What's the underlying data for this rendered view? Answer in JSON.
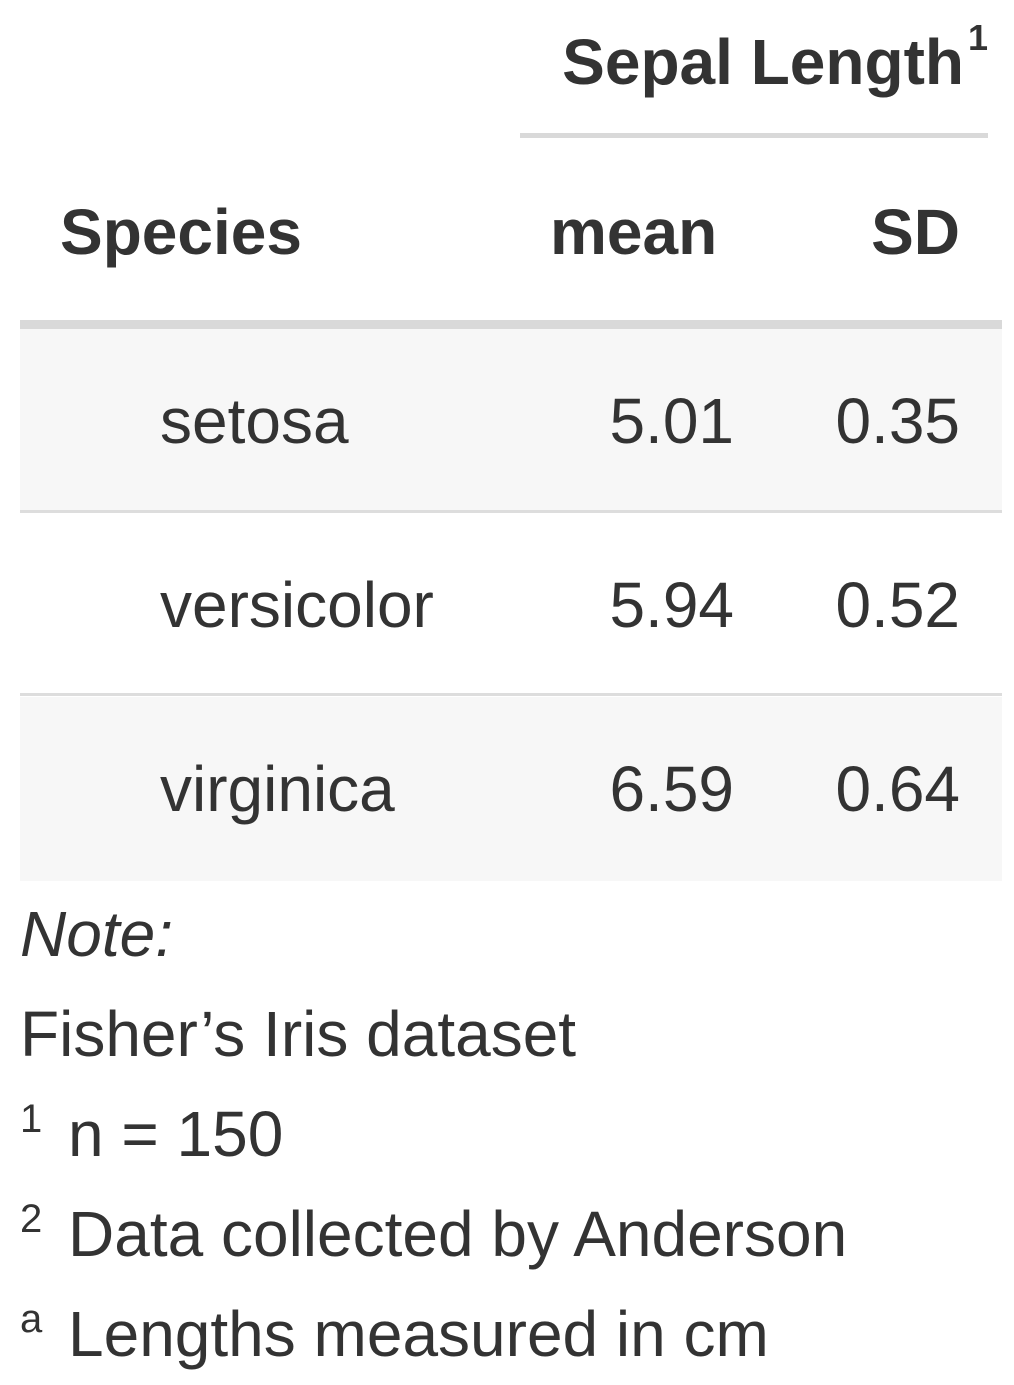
{
  "table": {
    "spanner": {
      "label": "Sepal Length",
      "footnote_mark": "1"
    },
    "columns": [
      "Species",
      "mean",
      "SD"
    ],
    "rows": [
      {
        "species": "setosa",
        "mean": "5.01",
        "sd": "0.35"
      },
      {
        "species": "versicolor",
        "mean": "5.94",
        "sd": "0.52"
      },
      {
        "species": "virginica",
        "mean": "6.59",
        "sd": "0.64"
      }
    ],
    "stripe_color": "#f7f7f7",
    "rule_color": "#d9d9d9"
  },
  "footer": {
    "note_label": "Note:",
    "note_text": "Fisher’s Iris dataset",
    "footnotes": [
      {
        "mark": "1",
        "text": "n = 150"
      },
      {
        "mark": "2",
        "text": "Data collected by Anderson"
      },
      {
        "mark": "a",
        "text": "Lengths measured in cm"
      }
    ]
  }
}
